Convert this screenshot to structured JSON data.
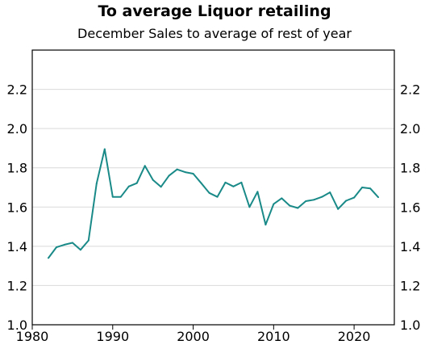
{
  "chart_data": {
    "type": "line",
    "title": "To average Liquor retailing",
    "subtitle": "December Sales to average of rest of year",
    "xlabel": "",
    "ylabel": "",
    "xlim": [
      1980,
      2025
    ],
    "ylim": [
      1.0,
      2.4
    ],
    "x_ticks": [
      1980,
      1990,
      2000,
      2010,
      2020
    ],
    "y_ticks": [
      1.0,
      1.2,
      1.4,
      1.6,
      1.8,
      2.0,
      2.2
    ],
    "y_tick_labels": [
      "1.0",
      "1.2",
      "1.4",
      "1.6",
      "1.8",
      "2.0",
      "2.2"
    ],
    "grid": "horizontal",
    "series": [
      {
        "color": "#1a8a88",
        "x": [
          1982,
          1983,
          1984,
          1985,
          1986,
          1987,
          1988,
          1989,
          1990,
          1991,
          1992,
          1993,
          1994,
          1995,
          1996,
          1997,
          1998,
          1999,
          2000,
          2001,
          2002,
          2003,
          2004,
          2005,
          2006,
          2007,
          2008,
          2009,
          2010,
          2011,
          2012,
          2013,
          2014,
          2015,
          2016,
          2017,
          2018,
          2019,
          2020,
          2021,
          2022,
          2023
        ],
        "values": [
          1.34,
          1.395,
          1.408,
          1.418,
          1.382,
          1.43,
          1.72,
          1.895,
          1.652,
          1.652,
          1.705,
          1.722,
          1.81,
          1.738,
          1.703,
          1.76,
          1.792,
          1.778,
          1.77,
          1.722,
          1.672,
          1.652,
          1.725,
          1.705,
          1.725,
          1.6,
          1.678,
          1.51,
          1.615,
          1.645,
          1.607,
          1.595,
          1.63,
          1.637,
          1.652,
          1.675,
          1.59,
          1.632,
          1.648,
          1.7,
          1.695,
          1.65
        ]
      }
    ]
  }
}
